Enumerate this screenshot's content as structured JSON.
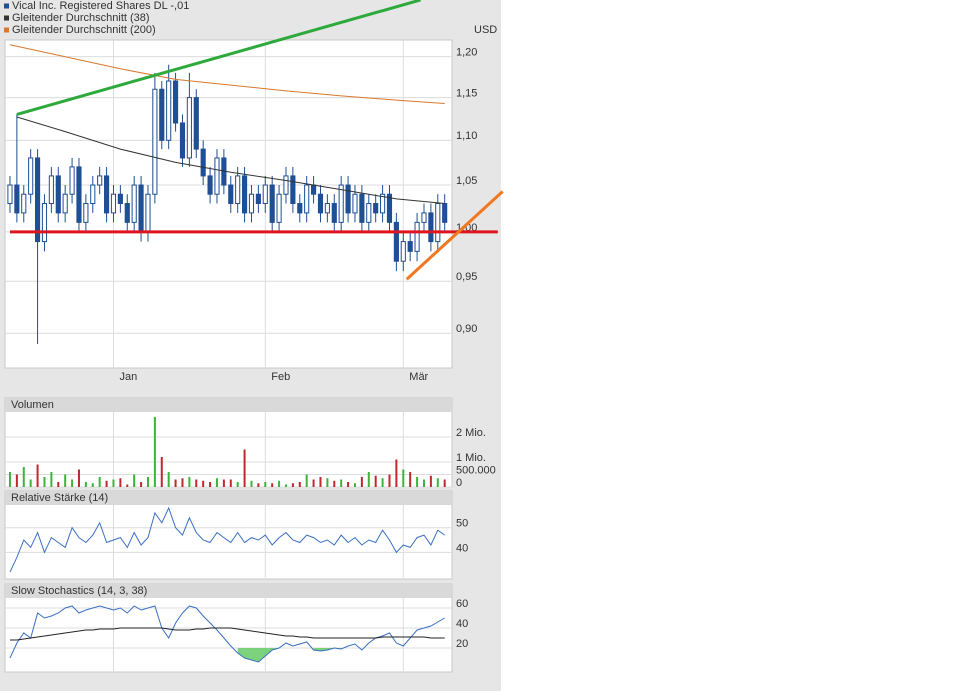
{
  "chart_data": [
    {
      "type": "candlestick",
      "ylabel": "USD",
      "log_scale": true,
      "grid": true,
      "xlim": [
        -0.72,
        64.06
      ],
      "ylim": [
        0.868,
        1.221
      ],
      "xticks": [
        {
          "value": 15,
          "label": "Jan"
        },
        {
          "value": 37,
          "label": "Feb"
        },
        {
          "value": 57,
          "label": "Mär"
        }
      ],
      "yticks": [
        {
          "value": 0.9,
          "label": "0,90"
        },
        {
          "value": 0.95,
          "label": "0,95"
        },
        {
          "value": 1.0,
          "label": "1,00"
        },
        {
          "value": 1.05,
          "label": "1,05"
        },
        {
          "value": 1.1,
          "label": "1,10"
        },
        {
          "value": 1.15,
          "label": "1,15"
        },
        {
          "value": 1.2,
          "label": "1,20"
        }
      ],
      "series": [
        {
          "name": "Vical Inc. Registered Shares DL -,01",
          "color": "#1f4f94",
          "open": [
            1.03,
            1.05,
            1.02,
            1.04,
            1.08,
            0.99,
            1.03,
            1.06,
            1.02,
            1.04,
            1.07,
            1.01,
            1.03,
            1.05,
            1.06,
            1.02,
            1.04,
            1.03,
            1.01,
            1.05,
            1.0,
            1.04,
            1.16,
            1.1,
            1.17,
            1.12,
            1.08,
            1.15,
            1.09,
            1.06,
            1.04,
            1.08,
            1.05,
            1.03,
            1.06,
            1.02,
            1.04,
            1.03,
            1.05,
            1.01,
            1.04,
            1.06,
            1.03,
            1.02,
            1.05,
            1.04,
            1.02,
            1.03,
            1.01,
            1.05,
            1.02,
            1.04,
            1.01,
            1.03,
            1.02,
            1.04,
            1.01,
            0.97,
            0.99,
            0.98,
            1.01,
            1.02,
            0.99,
            1.03
          ],
          "high": [
            1.06,
            1.13,
            1.05,
            1.09,
            1.09,
            1.04,
            1.07,
            1.07,
            1.05,
            1.08,
            1.08,
            1.04,
            1.06,
            1.07,
            1.07,
            1.05,
            1.05,
            1.04,
            1.06,
            1.06,
            1.05,
            1.18,
            1.17,
            1.19,
            1.18,
            1.13,
            1.18,
            1.16,
            1.1,
            1.07,
            1.09,
            1.09,
            1.06,
            1.07,
            1.07,
            1.05,
            1.05,
            1.06,
            1.06,
            1.05,
            1.07,
            1.07,
            1.04,
            1.06,
            1.06,
            1.05,
            1.04,
            1.04,
            1.06,
            1.06,
            1.05,
            1.05,
            1.04,
            1.04,
            1.05,
            1.05,
            1.02,
            1.0,
            1.0,
            1.02,
            1.03,
            1.03,
            1.04,
            1.04
          ],
          "low": [
            1.02,
            1.01,
            1.01,
            1.03,
            0.89,
            0.98,
            1.02,
            1.01,
            1.01,
            1.03,
            1.0,
            1.0,
            1.02,
            1.04,
            1.01,
            1.01,
            1.02,
            1.0,
            1.0,
            0.99,
            0.99,
            1.03,
            1.09,
            1.09,
            1.11,
            1.07,
            1.07,
            1.08,
            1.05,
            1.03,
            1.03,
            1.04,
            1.02,
            1.02,
            1.01,
            1.01,
            1.02,
            1.02,
            1.0,
            1.0,
            1.03,
            1.02,
            1.01,
            1.01,
            1.03,
            1.01,
            1.01,
            1.0,
            1.0,
            1.01,
            1.01,
            1.0,
            1.0,
            1.01,
            1.01,
            1.0,
            0.96,
            0.96,
            0.97,
            0.97,
            1.0,
            0.98,
            0.98,
            1.0
          ],
          "close": [
            1.05,
            1.02,
            1.04,
            1.08,
            0.99,
            1.03,
            1.06,
            1.02,
            1.04,
            1.07,
            1.01,
            1.03,
            1.05,
            1.06,
            1.02,
            1.04,
            1.03,
            1.01,
            1.05,
            1.0,
            1.04,
            1.16,
            1.1,
            1.17,
            1.12,
            1.08,
            1.15,
            1.09,
            1.06,
            1.04,
            1.08,
            1.05,
            1.03,
            1.06,
            1.02,
            1.04,
            1.03,
            1.05,
            1.01,
            1.04,
            1.06,
            1.03,
            1.02,
            1.05,
            1.04,
            1.02,
            1.03,
            1.01,
            1.05,
            1.02,
            1.04,
            1.01,
            1.03,
            1.02,
            1.04,
            1.01,
            0.97,
            0.99,
            0.98,
            1.01,
            1.02,
            0.99,
            1.03,
            1.01
          ]
        },
        {
          "name": "Gleitender Durchschnitt (38)",
          "color": "#333333",
          "x": [
            1,
            8,
            16,
            24,
            32,
            40,
            48,
            56,
            63
          ],
          "values": [
            1.127,
            1.11,
            1.09,
            1.075,
            1.064,
            1.055,
            1.045,
            1.035,
            1.03
          ]
        },
        {
          "name": "Gleitender Durchschnitt (200)",
          "color": "#d9782d",
          "x": [
            0,
            8,
            16,
            24,
            32,
            40,
            48,
            56,
            63
          ],
          "values": [
            1.215,
            1.2,
            1.185,
            1.172,
            1.165,
            1.158,
            1.152,
            1.147,
            1.143
          ]
        }
      ],
      "trendlines": [
        {
          "color": "#2eaa3c",
          "points": [
            [
              1,
              1.13
            ],
            [
              59.5,
              1.273
            ]
          ]
        },
        {
          "color": "#e0141e",
          "points": [
            [
              0,
              1.0
            ],
            [
              70.7,
              1.0
            ]
          ]
        },
        {
          "color": "#f07820",
          "points": [
            [
              57.5,
              0.952
            ],
            [
              71.4,
              1.043
            ]
          ]
        }
      ]
    },
    {
      "type": "bar",
      "title": "Volumen",
      "grid": true,
      "ylim": [
        0,
        3000000
      ],
      "up_color": "#3cb43c",
      "down_color": "#c0282d",
      "yticks": [
        0,
        {
          "value": 500000,
          "label": "500.000"
        },
        {
          "value": 1000000,
          "label": "1 Mio."
        },
        {
          "value": 2000000,
          "label": "2 Mio."
        }
      ],
      "values": [
        600000,
        500000,
        800000,
        300000,
        900000,
        400000,
        600000,
        200000,
        500000,
        300000,
        700000,
        200000,
        150000,
        400000,
        250000,
        300000,
        350000,
        100000,
        500000,
        200000,
        400000,
        2800000,
        1200000,
        600000,
        300000,
        350000,
        400000,
        300000,
        250000,
        200000,
        350000,
        300000,
        300000,
        200000,
        1500000,
        250000,
        150000,
        200000,
        150000,
        250000,
        100000,
        150000,
        200000,
        500000,
        300000,
        400000,
        350000,
        250000,
        300000,
        200000,
        150000,
        400000,
        600000,
        450000,
        350000,
        500000,
        1100000,
        700000,
        600000,
        400000,
        300000,
        450000,
        350000,
        300000
      ]
    },
    {
      "type": "line",
      "title": "Relative Stärke (14)",
      "grid": true,
      "ylim": [
        29.6,
        59.2
      ],
      "yticks": [
        40,
        50
      ],
      "series": [
        {
          "color": "#3a6fc4",
          "values": [
            32,
            38,
            45,
            42,
            48,
            40,
            46,
            44,
            42,
            50,
            46,
            44,
            47,
            52,
            44,
            45,
            46,
            42,
            48,
            43,
            46,
            56,
            52,
            58,
            50,
            47,
            54,
            48,
            45,
            44,
            48,
            46,
            44,
            48,
            44,
            46,
            45,
            47,
            43,
            46,
            48,
            45,
            44,
            47,
            46,
            44,
            45,
            43,
            47,
            44,
            46,
            43,
            45,
            44,
            49,
            45,
            40,
            43,
            42,
            46,
            47,
            43,
            49,
            47
          ]
        }
      ]
    },
    {
      "type": "line",
      "title": "Slow Stochastics (14, 3, 38)",
      "grid": true,
      "ylim": [
        -3,
        70
      ],
      "yticks": [
        20,
        40,
        60
      ],
      "fill_color": "#5cc85c",
      "series": [
        {
          "color": "#3a6fc4",
          "values": [
            10,
            25,
            35,
            30,
            55,
            50,
            52,
            55,
            60,
            62,
            55,
            58,
            60,
            62,
            60,
            58,
            60,
            55,
            62,
            58,
            60,
            62,
            40,
            30,
            45,
            55,
            62,
            60,
            52,
            45,
            38,
            30,
            22,
            15,
            10,
            8,
            6,
            12,
            18,
            20,
            25,
            22,
            24,
            26,
            18,
            17,
            18,
            20,
            19,
            22,
            24,
            18,
            25,
            30,
            32,
            35,
            25,
            22,
            30,
            38,
            40,
            42,
            46,
            50
          ]
        },
        {
          "color": "#222222",
          "values": [
            28,
            28,
            29,
            30,
            31,
            32,
            33,
            34,
            35,
            36,
            37,
            38,
            38,
            39,
            39,
            39,
            40,
            40,
            40,
            40,
            40,
            40,
            40,
            39,
            38,
            38,
            38,
            39,
            39,
            40,
            40,
            40,
            40,
            39,
            38,
            37,
            36,
            35,
            34,
            33,
            32,
            32,
            31,
            31,
            30,
            30,
            30,
            30,
            30,
            30,
            30,
            30,
            30,
            30,
            31,
            31,
            31,
            31,
            31,
            31,
            31,
            30,
            30,
            30
          ]
        }
      ]
    }
  ]
}
